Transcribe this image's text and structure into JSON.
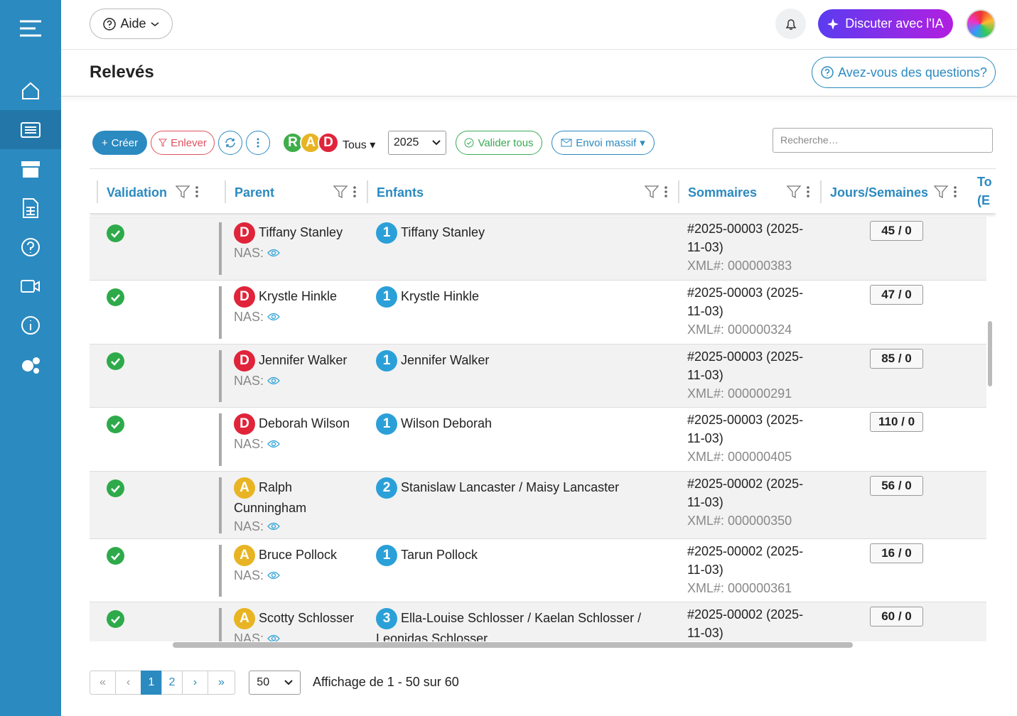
{
  "header": {
    "help": "Aide",
    "ai_button": "Discuter avec l'IA"
  },
  "page": {
    "title": "Relevés",
    "questions": "Avez-vous des questions?"
  },
  "toolbar": {
    "create": "Créer",
    "remove": "Enlever",
    "badges": [
      "R",
      "A",
      "D"
    ],
    "filter": "Tous",
    "year": "2025",
    "validate_all": "Valider tous",
    "bulk_send": "Envoi massif",
    "search_placeholder": "Recherche…"
  },
  "table": {
    "columns": [
      "Validation",
      "Parent",
      "Enfants",
      "Sommaires",
      "Jours/Semaines"
    ],
    "partial_column": [
      "To",
      "(E"
    ],
    "rows": [
      {
        "badge": "D",
        "parent": "Tiffany Stanley",
        "nas": "NAS:",
        "count": "1",
        "children": "Tiffany Stanley",
        "summary": "#2025-00003 (2025-11-03)",
        "xml": "XML#: 000000383",
        "days": "45 / 0"
      },
      {
        "badge": "D",
        "parent": "Krystle Hinkle",
        "nas": "NAS:",
        "count": "1",
        "children": "Krystle Hinkle",
        "summary": "#2025-00003 (2025-11-03)",
        "xml": "XML#: 000000324",
        "days": "47 / 0"
      },
      {
        "badge": "D",
        "parent": "Jennifer Walker",
        "nas": "NAS:",
        "count": "1",
        "children": "Jennifer Walker",
        "summary": "#2025-00003 (2025-11-03)",
        "xml": "XML#: 000000291",
        "days": "85 / 0"
      },
      {
        "badge": "D",
        "parent": "Deborah Wilson",
        "nas": "NAS:",
        "count": "1",
        "children": "Wilson Deborah",
        "summary": "#2025-00003 (2025-11-03)",
        "xml": "XML#: 000000405",
        "days": "110 / 0"
      },
      {
        "badge": "A",
        "parent": "Ralph Cunningham",
        "nas": "NAS:",
        "count": "2",
        "children": "Stanislaw Lancaster / Maisy Lancaster",
        "summary": "#2025-00002 (2025-11-03)",
        "xml": "XML#: 000000350",
        "days": "56 / 0"
      },
      {
        "badge": "A",
        "parent": "Bruce Pollock",
        "nas": "NAS:",
        "count": "1",
        "children": "Tarun Pollock",
        "summary": "#2025-00002 (2025-11-03)",
        "xml": "XML#: 000000361",
        "days": "16 / 0"
      },
      {
        "badge": "A",
        "parent": "Scotty Schlosser",
        "nas": "NAS:",
        "count": "3",
        "children": "Ella-Louise Schlosser / Kaelan Schlosser / Leonidas Schlosser",
        "summary": "#2025-00002 (2025-11-03)",
        "days": "60 / 0"
      }
    ]
  },
  "pagination": {
    "pages": [
      "1",
      "2"
    ],
    "per_page": "50",
    "info": "Affichage de 1 - 50 sur 60"
  }
}
